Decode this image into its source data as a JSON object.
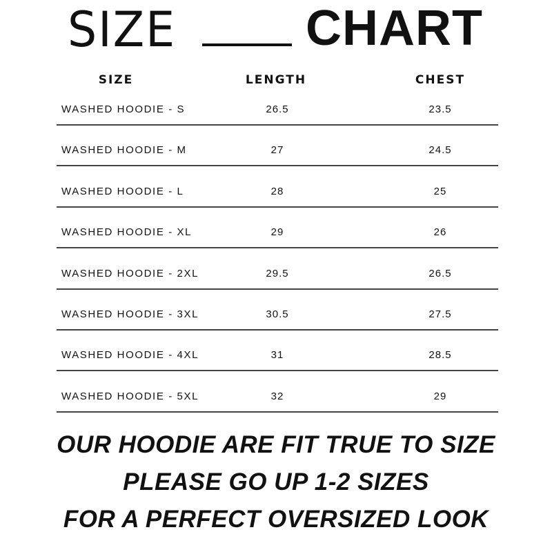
{
  "title": {
    "left": "SIZE",
    "right": "CHART"
  },
  "columns": [
    "SIZE",
    "LENGTH",
    "CHEST"
  ],
  "rows": [
    {
      "size": "WASHED HOODIE - S",
      "length": "26.5",
      "chest": "23.5"
    },
    {
      "size": "WASHED HOODIE - M",
      "length": "27",
      "chest": "24.5"
    },
    {
      "size": "WASHED HOODIE - L",
      "length": "28",
      "chest": "25"
    },
    {
      "size": "WASHED HOODIE - XL",
      "length": "29",
      "chest": "26"
    },
    {
      "size": "WASHED HOODIE - 2XL",
      "length": "29.5",
      "chest": "26.5"
    },
    {
      "size": "WASHED HOODIE - 3XL",
      "length": "30.5",
      "chest": "27.5"
    },
    {
      "size": "WASHED HOODIE - 4XL",
      "length": "31",
      "chest": "28.5"
    },
    {
      "size": "WASHED HOODIE - 5XL",
      "length": "32",
      "chest": "29"
    }
  ],
  "footer": [
    "OUR HOODIE ARE FIT TRUE TO SIZE",
    "PLEASE GO UP 1-2 SIZES",
    "FOR A PERFECT OVERSIZED LOOK"
  ]
}
